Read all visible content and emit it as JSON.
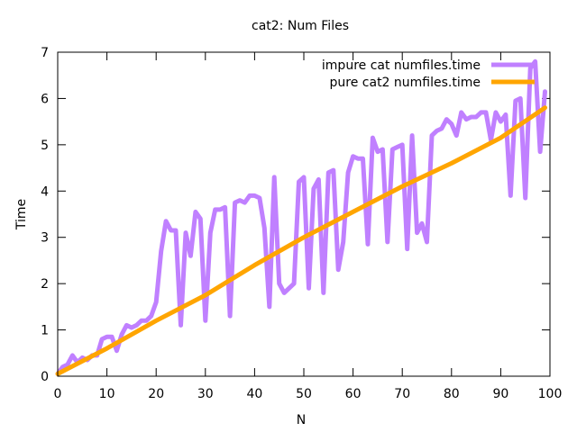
{
  "chart_data": {
    "type": "line",
    "title": "cat2: Num Files",
    "xlabel": "N",
    "ylabel": "Time",
    "xlim": [
      0,
      100
    ],
    "ylim": [
      0,
      7
    ],
    "xticks": [
      0,
      10,
      20,
      30,
      40,
      50,
      60,
      70,
      80,
      90,
      100
    ],
    "yticks": [
      0,
      1,
      2,
      3,
      4,
      5,
      6,
      7
    ],
    "grid": false,
    "legend_position": "top-right",
    "series": [
      {
        "name": "impure cat numfiles.time",
        "color": "#c080ff",
        "x": [
          0,
          1,
          2,
          3,
          4,
          5,
          6,
          7,
          8,
          9,
          10,
          11,
          12,
          13,
          14,
          15,
          16,
          17,
          18,
          19,
          20,
          21,
          22,
          23,
          24,
          25,
          26,
          27,
          28,
          29,
          30,
          31,
          32,
          33,
          34,
          35,
          36,
          37,
          38,
          39,
          40,
          41,
          42,
          43,
          44,
          45,
          46,
          47,
          48,
          49,
          50,
          51,
          52,
          53,
          54,
          55,
          56,
          57,
          58,
          59,
          60,
          61,
          62,
          63,
          64,
          65,
          66,
          67,
          68,
          69,
          70,
          71,
          72,
          73,
          74,
          75,
          76,
          77,
          78,
          79,
          80,
          81,
          82,
          83,
          84,
          85,
          86,
          87,
          88,
          89,
          90,
          91,
          92,
          93,
          94,
          95,
          96,
          97,
          98,
          99
        ],
        "values": [
          0.05,
          0.2,
          0.25,
          0.45,
          0.3,
          0.4,
          0.35,
          0.45,
          0.45,
          0.8,
          0.85,
          0.85,
          0.55,
          0.9,
          1.1,
          1.05,
          1.1,
          1.2,
          1.2,
          1.3,
          1.6,
          2.7,
          3.35,
          3.15,
          3.15,
          1.1,
          3.1,
          2.6,
          3.55,
          3.4,
          1.2,
          3.1,
          3.6,
          3.6,
          3.65,
          1.3,
          3.75,
          3.8,
          3.75,
          3.9,
          3.9,
          3.85,
          3.2,
          1.5,
          4.3,
          2.0,
          1.8,
          1.9,
          2.0,
          4.2,
          4.3,
          1.9,
          4.05,
          4.25,
          1.8,
          4.4,
          4.45,
          2.3,
          2.9,
          4.4,
          4.75,
          4.7,
          4.7,
          2.85,
          5.15,
          4.85,
          4.9,
          2.9,
          4.9,
          4.95,
          5.0,
          2.75,
          5.2,
          3.1,
          3.3,
          2.9,
          5.2,
          5.3,
          5.35,
          5.55,
          5.45,
          5.2,
          5.7,
          5.55,
          5.6,
          5.6,
          5.7,
          5.7,
          5.1,
          5.7,
          5.5,
          5.65,
          3.9,
          5.95,
          6.0,
          3.85,
          6.65,
          6.8,
          4.85,
          6.15
        ]
      },
      {
        "name": "pure cat2 numfiles.time",
        "color": "#ffa500",
        "x": [
          0,
          10,
          20,
          30,
          40,
          50,
          60,
          70,
          80,
          90,
          99
        ],
        "values": [
          0.05,
          0.6,
          1.2,
          1.75,
          2.4,
          3.0,
          3.55,
          4.1,
          4.6,
          5.15,
          5.8
        ]
      }
    ]
  }
}
